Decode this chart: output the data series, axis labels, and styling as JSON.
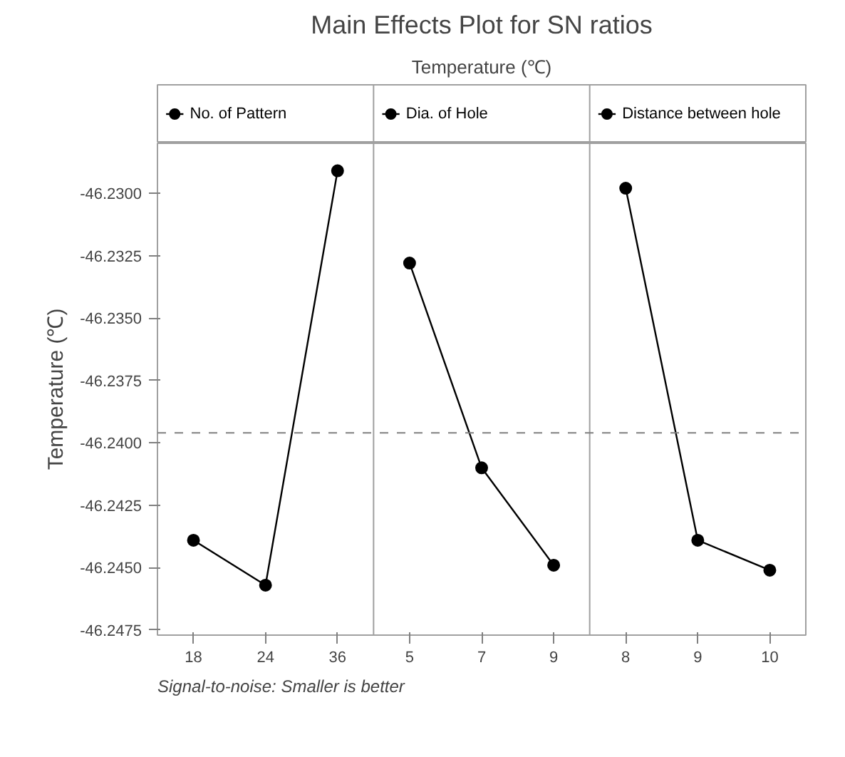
{
  "chart_data": {
    "type": "line",
    "title": "Main Effects Plot for SN ratios",
    "subtitle": "Temperature (℃)",
    "ylabel": "Temperature (℃)",
    "categories": [
      "18",
      "24",
      "36",
      "5",
      "7",
      "9",
      "8",
      "9",
      "10"
    ],
    "series": [
      {
        "name": "No. of Pattern",
        "color": "#000000",
        "values": [
          -46.2439,
          -46.2457,
          -46.2291,
          null,
          null,
          null,
          null,
          null,
          null
        ]
      },
      {
        "name": "Dia. of Hole",
        "color": "#000000",
        "values": [
          null,
          null,
          null,
          -46.2328,
          -46.241,
          -46.2449,
          null,
          null,
          null
        ]
      },
      {
        "name": "Distance between hole",
        "color": "#000000",
        "values": [
          null,
          null,
          null,
          null,
          null,
          null,
          -46.2298,
          -46.2439,
          -46.2451
        ]
      }
    ],
    "ylim": [
      -46.2477,
      -46.228
    ],
    "yticks": [
      {
        "value": -46.23,
        "label": "-46.2300"
      },
      {
        "value": -46.2325,
        "label": "-46.2325"
      },
      {
        "value": -46.235,
        "label": "-46.2350"
      },
      {
        "value": -46.2375,
        "label": "-46.2375"
      },
      {
        "value": -46.24,
        "label": "-46.2400"
      },
      {
        "value": -46.2425,
        "label": "-46.2425"
      },
      {
        "value": -46.245,
        "label": "-46.2450"
      },
      {
        "value": -46.2475,
        "label": "-46.2475"
      }
    ],
    "ref_lines": [
      {
        "axis": "y",
        "value": -46.2396,
        "color": "#808080",
        "line_style": "dashed"
      }
    ],
    "annotations": [
      "Signal-to-noise: Smaller is better"
    ],
    "marker": "circle",
    "line_style": "solid",
    "grid": false,
    "legend": "top"
  }
}
